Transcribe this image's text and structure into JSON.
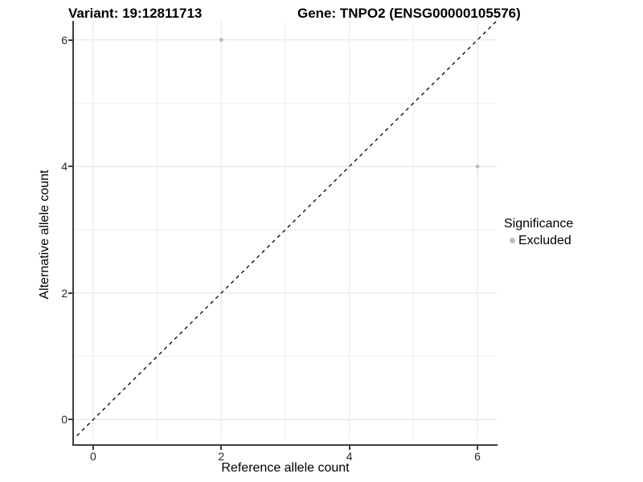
{
  "chart_data": {
    "type": "scatter",
    "title_left": "Variant: 19:12811713",
    "title_right": "Gene: TNPO2 (ENSG00000105576)",
    "xlabel": "Reference allele count",
    "ylabel": "Alternative allele count",
    "xlim": [
      -0.3,
      6.3
    ],
    "ylim": [
      -0.3,
      6.3
    ],
    "xticks": [
      0,
      2,
      4,
      6
    ],
    "yticks": [
      0,
      2,
      4,
      6
    ],
    "xtick_labels": [
      "0",
      "2",
      "4",
      "6"
    ],
    "ytick_labels": [
      "0",
      "2",
      "4",
      "6"
    ],
    "minor_gridlines_x": [
      1,
      3,
      5
    ],
    "minor_gridlines_y": [
      1,
      3,
      5
    ],
    "grid": true,
    "series": [
      {
        "name": "Excluded",
        "color": "#bdbdbd",
        "points": [
          {
            "x": 2,
            "y": 6
          },
          {
            "x": 6,
            "y": 4
          }
        ]
      }
    ],
    "reference_line": {
      "slope": 1,
      "intercept": 0,
      "style": "dashed",
      "color": "#000000"
    },
    "legend": {
      "title": "Significance",
      "position": "right",
      "items": [
        {
          "label": "Excluded",
          "color": "#bdbdbd"
        }
      ]
    },
    "style": {
      "grid_major_color": "#e4e4e4",
      "grid_minor_color": "#efefef",
      "axis_line_color": "#3d3d3d",
      "background": "#ffffff"
    }
  }
}
